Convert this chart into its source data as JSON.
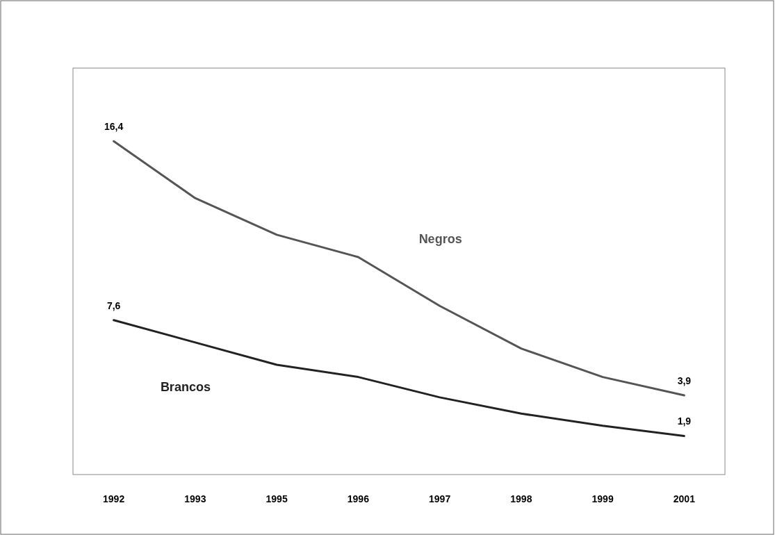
{
  "chart_data": {
    "type": "line",
    "categories": [
      "1992",
      "1993",
      "1995",
      "1996",
      "1997",
      "1998",
      "1999",
      "2001"
    ],
    "ylim": [
      0,
      20
    ],
    "tick_labels": "x",
    "series": [
      {
        "name": "Negros",
        "color": "#555555",
        "values": [
          16.4,
          13.6,
          11.8,
          10.7,
          8.3,
          6.2,
          4.8,
          3.9
        ],
        "value_labels": [
          "16,4",
          null,
          null,
          null,
          null,
          null,
          null,
          "3,9"
        ]
      },
      {
        "name": "Brancos",
        "color": "#222222",
        "values": [
          7.6,
          6.5,
          5.4,
          4.8,
          3.8,
          3.0,
          2.4,
          1.9
        ],
        "value_labels": [
          "7,6",
          null,
          null,
          null,
          null,
          null,
          null,
          "1,9"
        ]
      }
    ]
  }
}
